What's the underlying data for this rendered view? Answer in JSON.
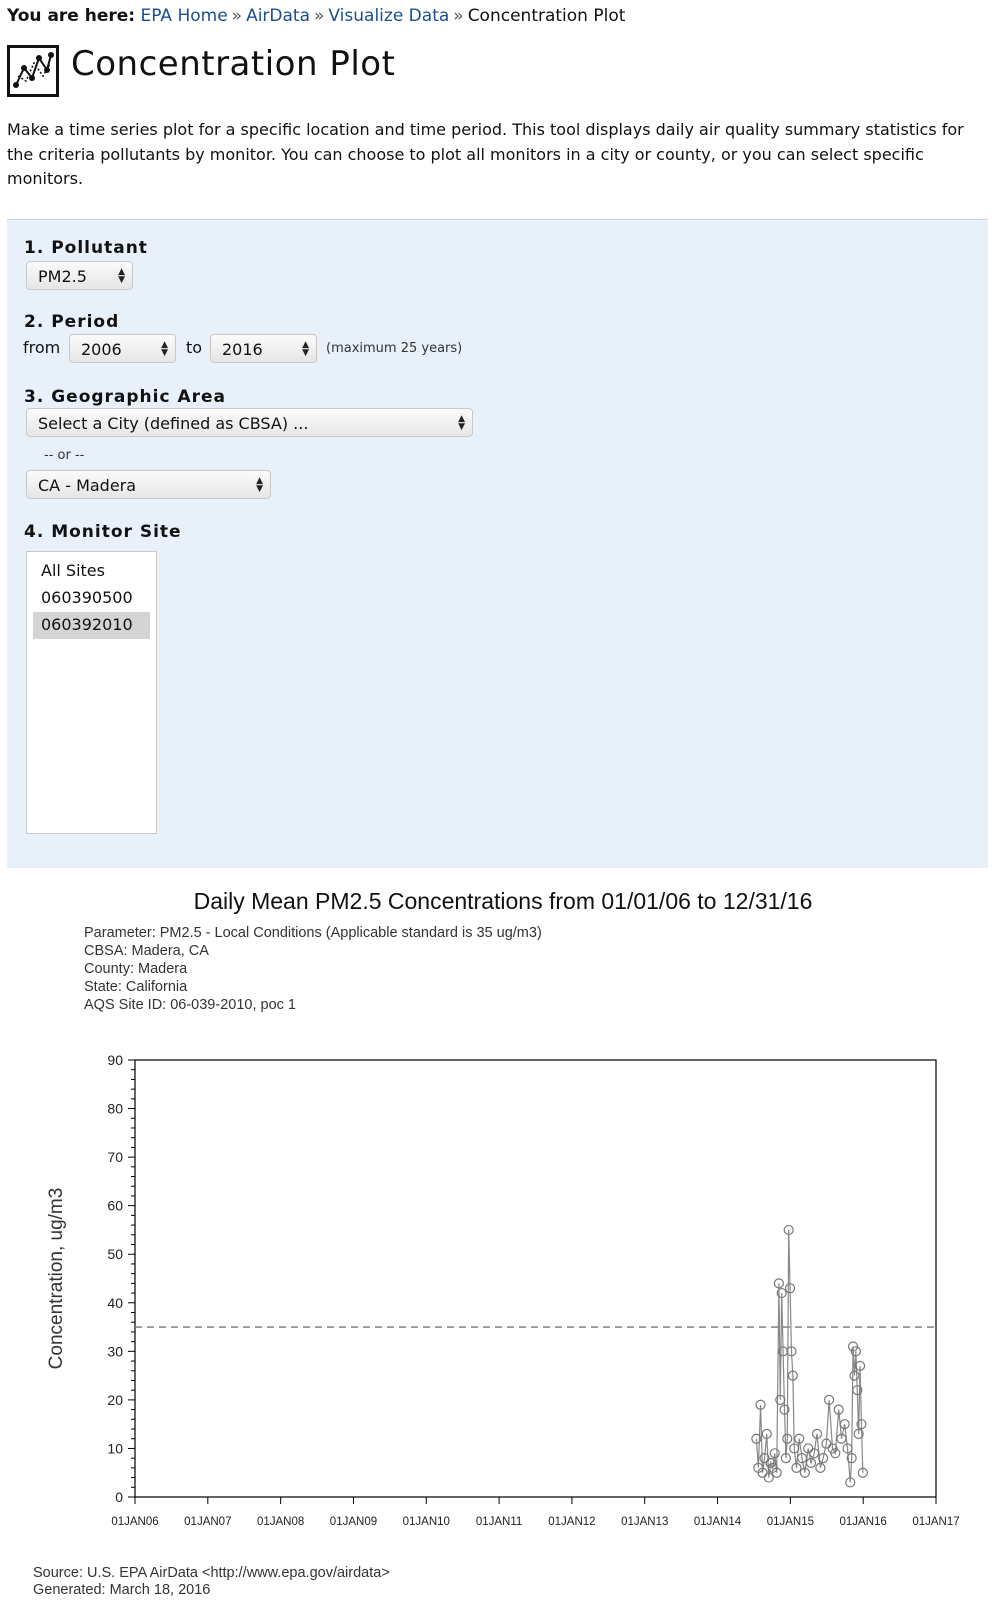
{
  "breadcrumb": {
    "lead": "You are here:",
    "links": [
      "EPA Home",
      "AirData",
      "Visualize Data"
    ],
    "separator": "»",
    "current": "Concentration Plot"
  },
  "page": {
    "title": "Concentration Plot",
    "logo_icon": "line-chart-icon",
    "intro": "Make a time series plot for a specific location and time period. This tool displays daily air quality summary statistics for the criteria pollutants by monitor. You can choose to plot all monitors in a city or county, or you can select specific monitors."
  },
  "form": {
    "pollutant_label": "1. Pollutant",
    "pollutant_value": "PM2.5",
    "period_label": "2. Period",
    "from_label": "from",
    "from_value": "2006",
    "to_label": "to",
    "to_value": "2016",
    "period_note": "(maximum 25 years)",
    "geo_label": "3. Geographic Area",
    "cbsa_value": "Select a City (defined as CBSA) ...",
    "or_label": "-- or --",
    "county_value": "CA - Madera",
    "site_label": "4. Monitor Site",
    "sites": [
      "All Sites",
      "060390500",
      "060392010"
    ],
    "selected_site": "060392010"
  },
  "chart_data": {
    "type": "scatter",
    "title": "Daily Mean PM2.5 Concentrations from 01/01/06 to 12/31/16",
    "meta": [
      "Parameter: PM2.5 - Local Conditions (Applicable standard is 35 ug/m3)",
      "CBSA: Madera, CA",
      "County: Madera",
      "State: California",
      "AQS Site ID: 06-039-2010, poc 1"
    ],
    "ylabel": "Concentration, ug/m3",
    "xlabel": "",
    "ylim": [
      0,
      90
    ],
    "yticks": [
      0,
      10,
      20,
      30,
      40,
      50,
      60,
      70,
      80,
      90
    ],
    "xticks": [
      "01JAN06",
      "01JAN07",
      "01JAN08",
      "01JAN09",
      "01JAN10",
      "01JAN11",
      "01JAN12",
      "01JAN13",
      "01JAN14",
      "01JAN15",
      "01JAN16",
      "01JAN17"
    ],
    "standard_line": 35,
    "series": [
      {
        "x": [
          "2014-07-15",
          "2014-07-25",
          "2014-08-05",
          "2014-08-15",
          "2014-08-25",
          "2014-09-05",
          "2014-09-15",
          "2014-09-25",
          "2014-10-05",
          "2014-10-15",
          "2014-10-25",
          "2014-11-05",
          "2014-11-12",
          "2014-11-19",
          "2014-11-26",
          "2014-12-03",
          "2014-12-10",
          "2014-12-17",
          "2014-12-24",
          "2014-12-31",
          "2015-01-07",
          "2015-01-14",
          "2015-01-21",
          "2015-02-01",
          "2015-02-15",
          "2015-03-01",
          "2015-03-15",
          "2015-04-01",
          "2015-04-15",
          "2015-05-01",
          "2015-05-15",
          "2015-06-01",
          "2015-06-15",
          "2015-07-01",
          "2015-07-15",
          "2015-08-01",
          "2015-08-15",
          "2015-09-01",
          "2015-09-15",
          "2015-10-01",
          "2015-10-15",
          "2015-10-29",
          "2015-11-05",
          "2015-11-12",
          "2015-11-19",
          "2015-11-26",
          "2015-12-03",
          "2015-12-10",
          "2015-12-17",
          "2015-12-24",
          "2015-12-31"
        ],
        "values": [
          12,
          6,
          19,
          5,
          8,
          13,
          4,
          7,
          6,
          9,
          5,
          44,
          20,
          42,
          30,
          18,
          8,
          12,
          55,
          43,
          30,
          25,
          10,
          6,
          12,
          8,
          5,
          10,
          7,
          9,
          13,
          6,
          8,
          11,
          20,
          10,
          9,
          18,
          12,
          15,
          10,
          3,
          8,
          31,
          25,
          30,
          22,
          13,
          27,
          15,
          5
        ]
      }
    ],
    "source": "Source: U.S. EPA AirData <http://www.epa.gov/airdata>",
    "generated": "Generated: March 18, 2016"
  }
}
